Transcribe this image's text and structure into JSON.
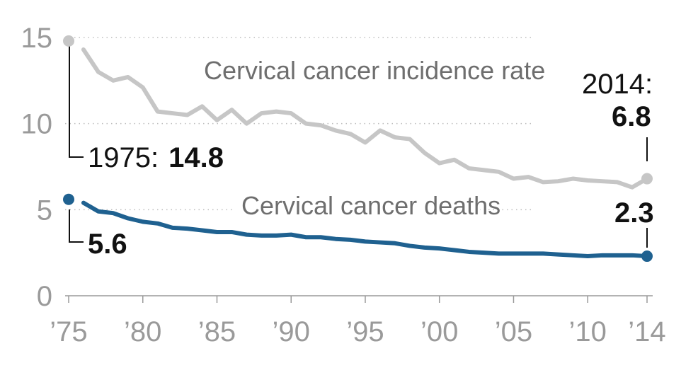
{
  "chart_data": {
    "type": "line",
    "xlim": [
      1975,
      2014
    ],
    "ylim": [
      0,
      15
    ],
    "x_ticks": [
      1975,
      1980,
      1985,
      1990,
      1995,
      2000,
      2005,
      2010,
      2014
    ],
    "x_tick_labels": [
      "’75",
      "’80",
      "’85",
      "’90",
      "’95",
      "’00",
      "’05",
      "’10",
      "’14"
    ],
    "y_ticks": [
      0,
      5,
      10,
      15
    ],
    "y_tick_labels": [
      "0",
      "5",
      "10",
      "15"
    ],
    "grid": "dotted horizontal",
    "x": [
      1975,
      1976,
      1977,
      1978,
      1979,
      1980,
      1981,
      1982,
      1983,
      1984,
      1985,
      1986,
      1987,
      1988,
      1989,
      1990,
      1991,
      1992,
      1993,
      1994,
      1995,
      1996,
      1997,
      1998,
      1999,
      2000,
      2001,
      2002,
      2003,
      2004,
      2005,
      2006,
      2007,
      2008,
      2009,
      2010,
      2011,
      2012,
      2013,
      2014
    ],
    "series": [
      {
        "name": "Cervical cancer incidence rate",
        "color": "#c6c6c6",
        "values": [
          14.8,
          14.3,
          13.0,
          12.5,
          12.7,
          12.1,
          10.7,
          10.6,
          10.5,
          11.0,
          10.2,
          10.8,
          10.0,
          10.6,
          10.7,
          10.6,
          10.0,
          9.9,
          9.6,
          9.4,
          8.9,
          9.6,
          9.2,
          9.1,
          8.3,
          7.7,
          7.9,
          7.4,
          7.3,
          7.2,
          6.8,
          6.9,
          6.6,
          6.65,
          6.8,
          6.7,
          6.65,
          6.6,
          6.3,
          6.8
        ]
      },
      {
        "name": "Cervical cancer deaths",
        "color": "#1f6190",
        "values": [
          5.6,
          5.4,
          4.9,
          4.8,
          4.5,
          4.3,
          4.2,
          3.95,
          3.9,
          3.8,
          3.7,
          3.7,
          3.55,
          3.5,
          3.5,
          3.55,
          3.4,
          3.4,
          3.3,
          3.25,
          3.15,
          3.1,
          3.05,
          2.9,
          2.8,
          2.75,
          2.65,
          2.55,
          2.5,
          2.45,
          2.45,
          2.45,
          2.45,
          2.4,
          2.35,
          2.3,
          2.35,
          2.35,
          2.35,
          2.3
        ]
      }
    ],
    "annotations": {
      "start_year_label": "1975:",
      "start_incidence": "14.8",
      "start_deaths": "5.6",
      "end_year_label": "2014:",
      "end_incidence": "6.8",
      "end_deaths": "2.3"
    }
  }
}
